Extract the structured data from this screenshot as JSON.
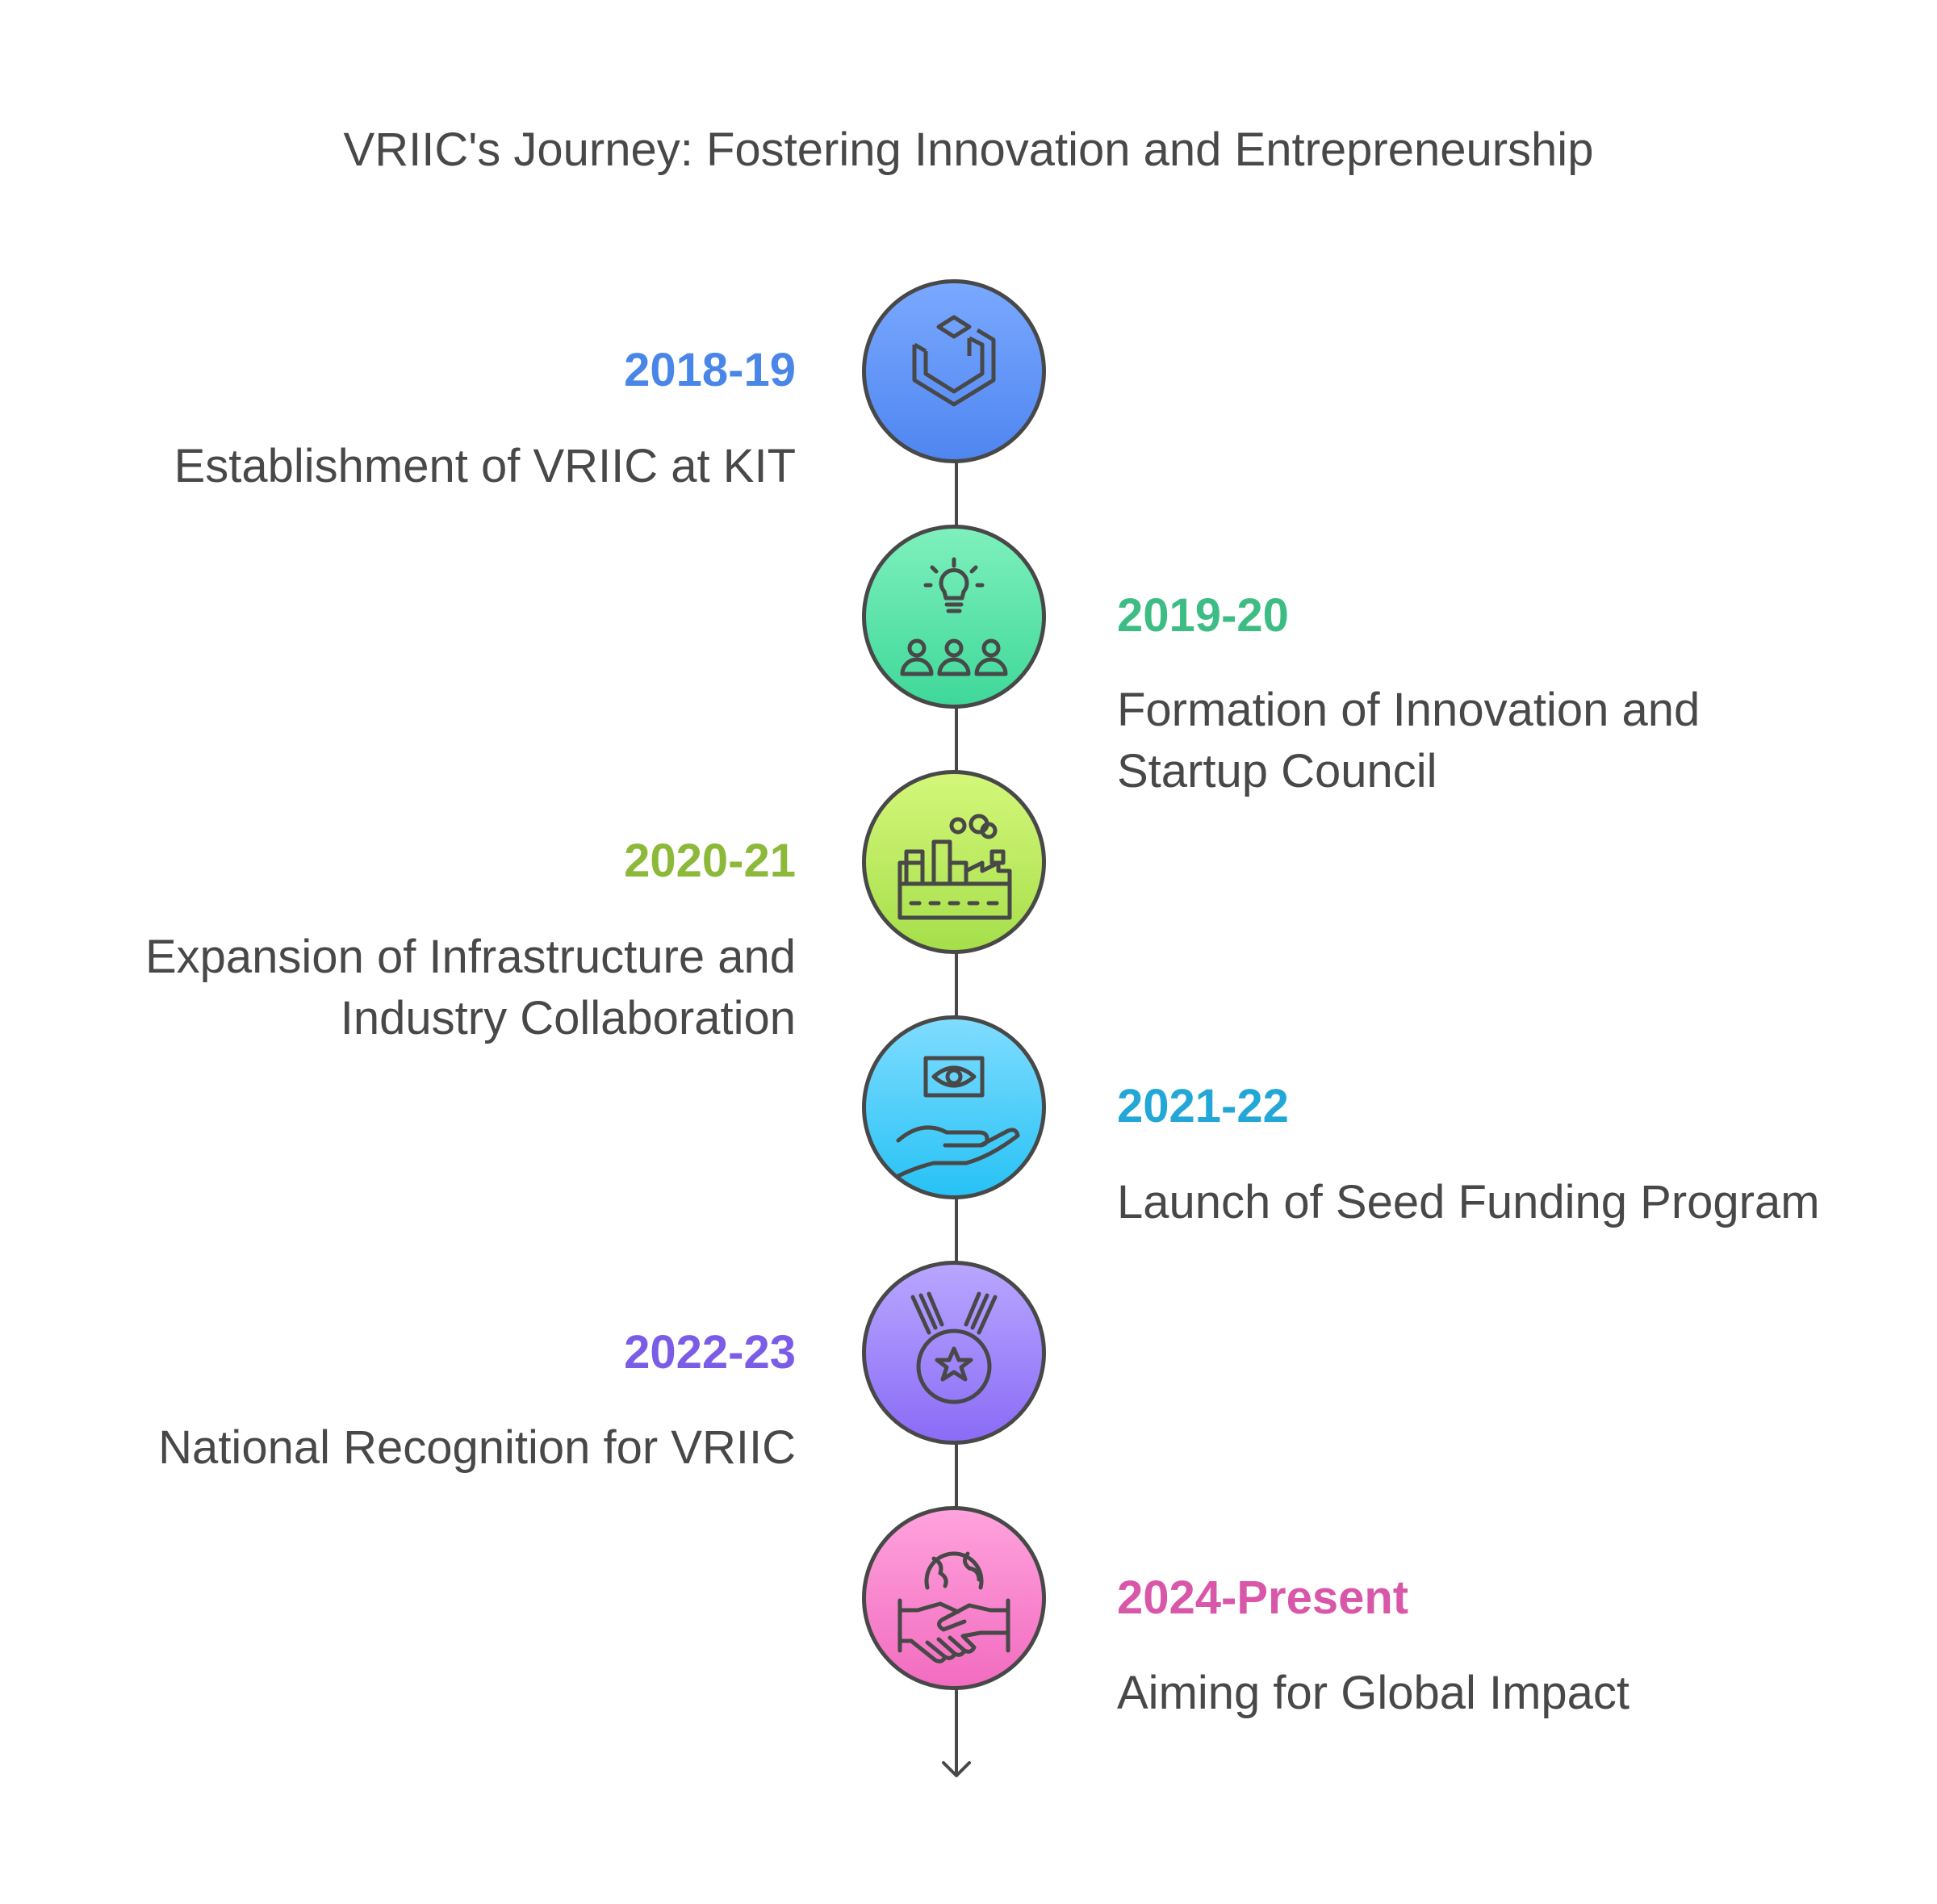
{
  "title": "VRIIC's Journey: Fostering Innovation and Entrepreneurship",
  "milestones": [
    {
      "year": "2018-19",
      "description": "Establishment of VRIIC at KIT",
      "color": "#4a86e8",
      "gradient": [
        "#79a8ff",
        "#4f86f0"
      ],
      "icon": "cube-icon"
    },
    {
      "year": "2019-20",
      "description": "Formation of Innovation and Startup Council",
      "color": "#3dbd84",
      "gradient": [
        "#7ef0bc",
        "#3fd89a"
      ],
      "icon": "idea-team-icon"
    },
    {
      "year": "2020-21",
      "description": "Expansion of Infrastructure and Industry Collaboration",
      "color": "#8db93a",
      "gradient": [
        "#d4f77a",
        "#a6df4a"
      ],
      "icon": "factory-icon"
    },
    {
      "year": "2021-22",
      "description": "Launch of Seed Funding Program",
      "color": "#22a7d6",
      "gradient": [
        "#7fdcff",
        "#27c2f5"
      ],
      "icon": "money-hand-icon"
    },
    {
      "year": "2022-23",
      "description": "National Recognition for VRIIC",
      "color": "#7b5ce6",
      "gradient": [
        "#b8a6ff",
        "#8a6cf6"
      ],
      "icon": "medal-icon"
    },
    {
      "year": "2024-Present",
      "description": "Aiming for Global Impact",
      "color": "#d957a8",
      "gradient": [
        "#ffa2dc",
        "#f26cc0"
      ],
      "icon": "global-handshake-icon"
    }
  ]
}
